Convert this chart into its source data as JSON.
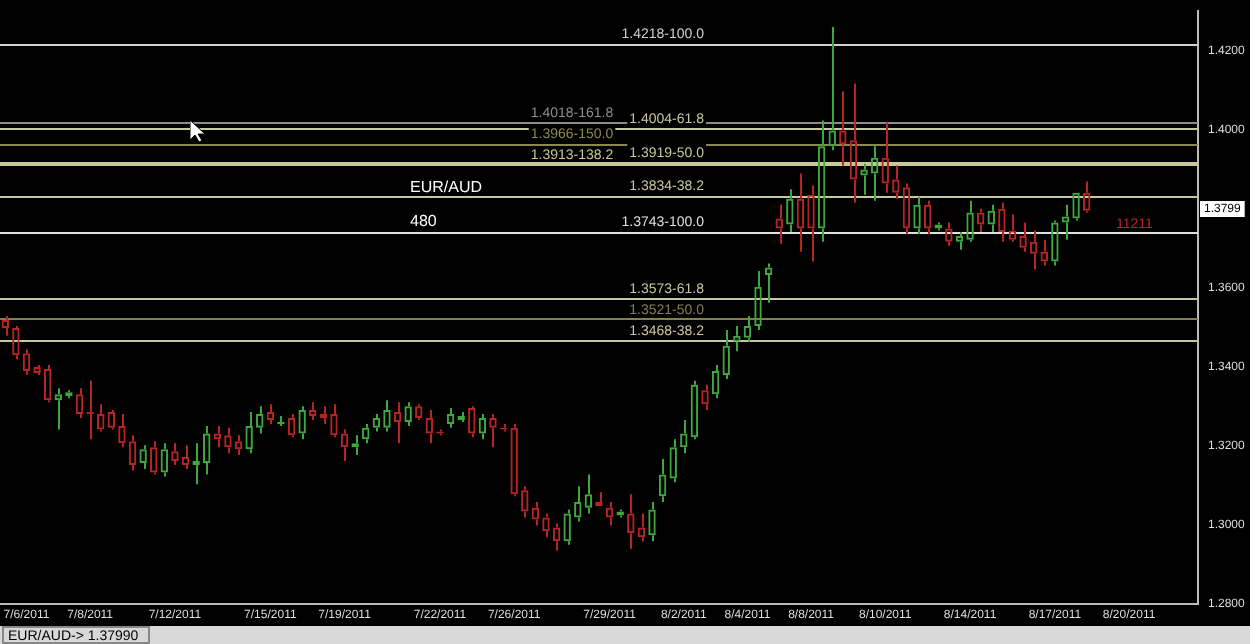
{
  "chart_data": {
    "type": "candlestick",
    "categories": [
      null,
      null,
      "7/6/2011",
      null,
      null,
      null,
      null,
      null,
      "7/8/2011",
      null,
      null,
      null,
      null,
      null,
      null,
      null,
      "7/12/2011",
      null,
      null,
      null,
      null,
      null,
      null,
      null,
      null,
      "7/15/2011",
      null,
      null,
      null,
      null,
      null,
      null,
      "7/19/2011",
      null,
      null,
      null,
      null,
      null,
      null,
      null,
      null,
      "7/22/2011",
      null,
      null,
      null,
      null,
      null,
      null,
      "7/26/2011",
      null,
      null,
      null,
      null,
      null,
      null,
      null,
      null,
      "7/29/2011",
      null,
      null,
      null,
      null,
      null,
      null,
      "8/2/2011",
      null,
      null,
      null,
      null,
      null,
      "8/4/2011",
      null,
      null,
      null,
      null,
      null,
      "8/8/2011",
      null,
      null,
      null,
      null,
      null,
      null,
      "8/10/2011",
      null,
      null,
      null,
      null,
      null,
      null,
      null,
      "8/14/2011",
      null,
      null,
      null,
      null,
      null,
      null,
      null,
      "8/17/2011",
      null,
      null,
      null,
      null,
      null,
      null,
      "8/20/2011",
      null,
      null,
      null,
      null,
      null,
      null
    ],
    "ohlc": [
      [
        1.3518,
        1.3528,
        1.3478,
        1.3498
      ],
      [
        1.3498,
        1.3503,
        1.3419,
        1.3429
      ],
      [
        1.3434,
        1.3444,
        1.3379,
        1.3389
      ],
      [
        1.3399,
        1.3404,
        1.3379,
        1.3384
      ],
      [
        1.3394,
        1.3404,
        1.331,
        1.3315
      ],
      [
        1.3315,
        1.3345,
        1.3241,
        1.333
      ],
      [
        1.3325,
        1.334,
        1.332,
        1.3335
      ],
      [
        1.333,
        1.3345,
        1.327,
        1.328
      ],
      [
        1.3285,
        1.3364,
        1.3216,
        1.328
      ],
      [
        1.328,
        1.3305,
        1.3236,
        1.3241
      ],
      [
        1.3285,
        1.329,
        1.3241,
        1.3245
      ],
      [
        1.325,
        1.328,
        1.3196,
        1.3206
      ],
      [
        1.3211,
        1.3226,
        1.3137,
        1.3151
      ],
      [
        1.3156,
        1.3201,
        1.3141,
        1.3191
      ],
      [
        1.3196,
        1.3211,
        1.3127,
        1.3132
      ],
      [
        1.3132,
        1.3206,
        1.3122,
        1.3191
      ],
      [
        1.3186,
        1.3206,
        1.3151,
        1.3161
      ],
      [
        1.3171,
        1.3201,
        1.3141,
        1.3151
      ],
      [
        1.3151,
        1.3206,
        1.3102,
        1.3161
      ],
      [
        1.3156,
        1.325,
        1.3127,
        1.3231
      ],
      [
        1.3231,
        1.325,
        1.3196,
        1.3216
      ],
      [
        1.3226,
        1.3245,
        1.3181,
        1.3196
      ],
      [
        1.3211,
        1.3226,
        1.3176,
        1.3191
      ],
      [
        1.3191,
        1.3285,
        1.3181,
        1.325
      ],
      [
        1.3245,
        1.33,
        1.3231,
        1.328
      ],
      [
        1.3285,
        1.3305,
        1.3255,
        1.3265
      ],
      [
        1.3255,
        1.3275,
        1.325,
        1.326
      ],
      [
        1.327,
        1.328,
        1.3221,
        1.3226
      ],
      [
        1.3231,
        1.33,
        1.3216,
        1.329
      ],
      [
        1.329,
        1.331,
        1.3265,
        1.3275
      ],
      [
        1.328,
        1.33,
        1.3255,
        1.327
      ],
      [
        1.328,
        1.3305,
        1.3221,
        1.3226
      ],
      [
        1.3231,
        1.3241,
        1.3161,
        1.3196
      ],
      [
        1.3196,
        1.3226,
        1.3176,
        1.3206
      ],
      [
        1.3216,
        1.3255,
        1.3206,
        1.3245
      ],
      [
        1.3245,
        1.328,
        1.3236,
        1.327
      ],
      [
        1.3245,
        1.3315,
        1.3236,
        1.329
      ],
      [
        1.3285,
        1.331,
        1.3206,
        1.326
      ],
      [
        1.326,
        1.331,
        1.325,
        1.33
      ],
      [
        1.33,
        1.3305,
        1.3265,
        1.327
      ],
      [
        1.327,
        1.329,
        1.3206,
        1.3231
      ],
      [
        1.3236,
        1.3241,
        1.3226,
        1.3231
      ],
      [
        1.3255,
        1.3295,
        1.3245,
        1.328
      ],
      [
        1.3265,
        1.3285,
        1.326,
        1.3275
      ],
      [
        1.3295,
        1.33,
        1.3221,
        1.3231
      ],
      [
        1.3231,
        1.328,
        1.3216,
        1.327
      ],
      [
        1.327,
        1.328,
        1.3196,
        1.3245
      ],
      [
        1.3245,
        1.3255,
        1.3236,
        1.3241
      ],
      [
        1.3245,
        1.3255,
        1.3072,
        1.3077
      ],
      [
        1.3087,
        1.3097,
        1.3018,
        1.3033
      ],
      [
        1.3043,
        1.3057,
        1.2998,
        1.3013
      ],
      [
        1.3018,
        1.3028,
        1.2968,
        1.2983
      ],
      [
        1.2993,
        1.3003,
        1.2934,
        1.2958
      ],
      [
        1.2958,
        1.3038,
        1.2949,
        1.3028
      ],
      [
        1.3018,
        1.3097,
        1.3008,
        1.3057
      ],
      [
        1.3043,
        1.3127,
        1.3028,
        1.3077
      ],
      [
        1.3057,
        1.3082,
        1.3047,
        1.3047
      ],
      [
        1.3043,
        1.3057,
        1.2998,
        1.3018
      ],
      [
        1.3023,
        1.3038,
        1.3018,
        1.3033
      ],
      [
        1.3028,
        1.3077,
        1.2939,
        1.2978
      ],
      [
        1.2993,
        1.3028,
        1.2958,
        1.2968
      ],
      [
        1.2973,
        1.3057,
        1.2958,
        1.3038
      ],
      [
        1.3072,
        1.3166,
        1.3057,
        1.3127
      ],
      [
        1.3117,
        1.3216,
        1.3107,
        1.3196
      ],
      [
        1.3196,
        1.3265,
        1.3181,
        1.3231
      ],
      [
        1.3221,
        1.3364,
        1.3216,
        1.3354
      ],
      [
        1.334,
        1.3354,
        1.329,
        1.3305
      ],
      [
        1.333,
        1.3404,
        1.332,
        1.3389
      ],
      [
        1.3379,
        1.3493,
        1.3369,
        1.3453
      ],
      [
        1.3463,
        1.3503,
        1.3439,
        1.3478
      ],
      [
        1.3473,
        1.3528,
        1.3463,
        1.3503
      ],
      [
        1.3503,
        1.3642,
        1.3493,
        1.3602
      ],
      [
        1.3632,
        1.3661,
        1.3562,
        1.3651
      ],
      [
        1.3775,
        1.381,
        1.3711,
        1.375
      ],
      [
        1.376,
        1.3849,
        1.3741,
        1.3825
      ],
      [
        1.3825,
        1.3889,
        1.3691,
        1.375
      ],
      [
        1.3835,
        1.3859,
        1.3666,
        1.375
      ],
      [
        1.375,
        1.4023,
        1.3716,
        1.3958
      ],
      [
        1.3958,
        1.426,
        1.3948,
        1.3998
      ],
      [
        1.3998,
        1.4097,
        1.3909,
        1.3963
      ],
      [
        1.3973,
        1.4117,
        1.3815,
        1.3874
      ],
      [
        1.3884,
        1.3914,
        1.3835,
        1.3899
      ],
      [
        1.3889,
        1.3958,
        1.382,
        1.3929
      ],
      [
        1.3929,
        1.4018,
        1.384,
        1.3864
      ],
      [
        1.3874,
        1.3909,
        1.3825,
        1.384
      ],
      [
        1.3854,
        1.3864,
        1.3736,
        1.375
      ],
      [
        1.375,
        1.383,
        1.3736,
        1.381
      ],
      [
        1.381,
        1.382,
        1.3736,
        1.375
      ],
      [
        1.375,
        1.3765,
        1.3745,
        1.376
      ],
      [
        1.375,
        1.3765,
        1.3706,
        1.3716
      ],
      [
        1.3716,
        1.3741,
        1.3696,
        1.3731
      ],
      [
        1.3721,
        1.382,
        1.3716,
        1.379
      ],
      [
        1.379,
        1.38,
        1.3741,
        1.376
      ],
      [
        1.376,
        1.381,
        1.3741,
        1.3795
      ],
      [
        1.38,
        1.3815,
        1.3716,
        1.3741
      ],
      [
        1.3745,
        1.3785,
        1.3716,
        1.3721
      ],
      [
        1.3731,
        1.3765,
        1.3691,
        1.3701
      ],
      [
        1.3716,
        1.3745,
        1.3646,
        1.3686
      ],
      [
        1.3691,
        1.3721,
        1.3656,
        1.3666
      ],
      [
        1.3666,
        1.377,
        1.3656,
        1.3765
      ],
      [
        1.3765,
        1.381,
        1.3721,
        1.378
      ],
      [
        1.3775,
        1.384,
        1.377,
        1.384
      ],
      [
        1.384,
        1.3869,
        1.379,
        1.3795
      ],
      null,
      null,
      null,
      null,
      null,
      null,
      null,
      null,
      null,
      null
    ],
    "ylim": [
      1.28,
      1.43
    ],
    "yticks": [
      {
        "value": 1.28,
        "label": "1.2800"
      },
      {
        "value": 1.3,
        "label": "1.3000"
      },
      {
        "value": 1.32,
        "label": "1.3200"
      },
      {
        "value": 1.34,
        "label": "1.3400"
      },
      {
        "value": 1.36,
        "label": "1.3600"
      },
      {
        "value": 1.4,
        "label": "1.4000"
      },
      {
        "value": 1.42,
        "label": "1.4200"
      }
    ],
    "ref_lines": [
      {
        "axis": "y",
        "value": 1.4218,
        "label": "1.4218-100.0",
        "color": "#d0d0d0"
      },
      {
        "axis": "y",
        "value": 1.4004,
        "label": "1.4004-61.8",
        "color": "#c8c8a0"
      },
      {
        "axis": "y",
        "value": 1.3919,
        "label": "1.3919-50.0",
        "color": "#c8c8a0"
      },
      {
        "axis": "y",
        "value": 1.3834,
        "label": "1.3834-38.2",
        "color": "#c8c8a0"
      },
      {
        "axis": "y",
        "value": 1.4018,
        "label": "1.4018-161.8",
        "color": "#8c8c8c"
      },
      {
        "axis": "y",
        "value": 1.3966,
        "label": "1.3966-150.0",
        "color": "#8a8a50"
      },
      {
        "axis": "y",
        "value": 1.3913,
        "label": "1.3913-138.2",
        "color": "#c8c890"
      },
      {
        "axis": "y",
        "value": 1.3743,
        "label": "1.3743-100.0",
        "color": "#e0e0e0"
      },
      {
        "axis": "y",
        "value": 1.3573,
        "label": "1.3573-61.8",
        "color": "#c8c8a0"
      },
      {
        "axis": "y",
        "value": 1.3521,
        "label": "1.3521-50.0",
        "color": "#808050"
      },
      {
        "axis": "y",
        "value": 1.3468,
        "label": "1.3468-38.2",
        "color": "#c8c8a0"
      }
    ],
    "annotations": [
      "EUR/AUD",
      "480",
      "11211",
      {
        "text": "1.3799",
        "y": 1.3799
      },
      "EUR/AUD-> 1.37990"
    ],
    "grid": false,
    "legend": false
  }
}
